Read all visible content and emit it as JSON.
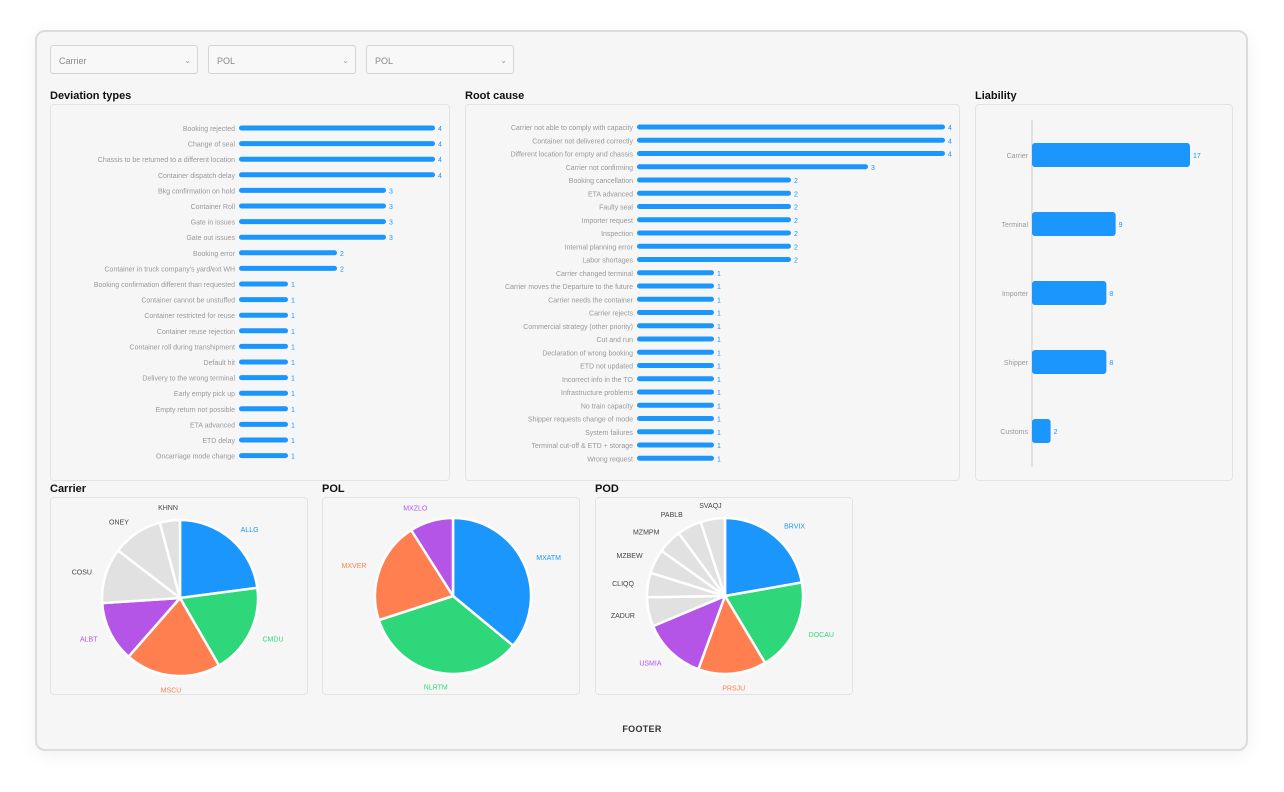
{
  "filters": [
    {
      "label": "Carrier"
    },
    {
      "label": "POL"
    },
    {
      "label": "POL"
    }
  ],
  "colors": {
    "bar": "#1a96fc",
    "label": "#999999",
    "value": "#1a96fc"
  },
  "deviation": {
    "title": "Deviation types",
    "chart": {
      "type": "bar",
      "orientation": "horizontal",
      "categories": [
        "Booking rejected",
        "Change of seal",
        "Chassis to be returned to a different location",
        "Container dispatch delay",
        "Bkg confirmation on hold",
        "Container Roll",
        "Gate in issues",
        "Gate out issues",
        "Booking error",
        "Container in truck company's yard/ext WH",
        "Booking confirmation different than requested",
        "Container cannot be unstuffed",
        "Container restricted for reuse",
        "Container reuse rejection",
        "Container roll during transhipment",
        "Default hit",
        "Delivery to the wrong terminal",
        "Early empty pick up",
        "Empty return not possible",
        "ETA advanced",
        "ETD delay",
        "Oncarriage mode change"
      ],
      "values": [
        4,
        4,
        4,
        4,
        3,
        3,
        3,
        3,
        2,
        2,
        1,
        1,
        1,
        1,
        1,
        1,
        1,
        1,
        1,
        1,
        1,
        1
      ],
      "xlim": [
        0,
        4
      ]
    }
  },
  "rootcause": {
    "title": "Root cause",
    "chart": {
      "type": "bar",
      "orientation": "horizontal",
      "categories": [
        "Carrier not able to comply with capacity",
        "Container not delivered correctly",
        "Different location for empty and chassis",
        "Carrier not confirming",
        "Booking cancellation",
        "ETA advanced",
        "Faulty seal",
        "Importer request",
        "Inspection",
        "Internal planning error",
        "Labor shortages",
        "Carrier changed terminal",
        "Carrier moves the Departure to the future",
        "Carrier needs the container",
        "Carrier rejects",
        "Commercial strategy (other priority)",
        "Cut and run",
        "Declaration of wrong booking",
        "ETD not updated",
        "Incorrect info in the TO",
        "Infrastructure problems",
        "No train capacity",
        "Shipper requests change of mode",
        "System failures",
        "Terminal cut-off & ETD + storage",
        "Wrong request"
      ],
      "values": [
        4,
        4,
        4,
        3,
        2,
        2,
        2,
        2,
        2,
        2,
        2,
        1,
        1,
        1,
        1,
        1,
        1,
        1,
        1,
        1,
        1,
        1,
        1,
        1,
        1,
        1
      ],
      "xlim": [
        0,
        4
      ]
    }
  },
  "liability": {
    "title": "Liability",
    "chart": {
      "type": "bar",
      "orientation": "horizontal",
      "categories": [
        "Carrier",
        "Terminal",
        "Importer",
        "Shipper",
        "Customs"
      ],
      "values": [
        17,
        9,
        8,
        8,
        2
      ],
      "xlim": [
        0,
        17
      ]
    }
  },
  "pies": [
    {
      "title": "Carrier",
      "chart": {
        "type": "pie",
        "labels": [
          "ALLG",
          "CMDU",
          "MSCU",
          "ALBT",
          "COSU",
          "ONEY",
          "KHNN"
        ],
        "values": [
          22,
          18,
          19,
          12,
          11,
          10,
          4
        ],
        "colors": [
          "#1a96fc",
          "#2ed87a",
          "#ff7f50",
          "#b455e8",
          "#e1e1e1",
          "#e1e1e1",
          "#e1e1e1"
        ],
        "label_colors": [
          "#1a96fc",
          "#2ed87a",
          "#ff7f50",
          "#b455e8",
          "#444444",
          "#444444",
          "#444444"
        ]
      }
    },
    {
      "title": "POL",
      "chart": {
        "type": "pie",
        "labels": [
          "MXATM",
          "NLRTM",
          "MXVER",
          "MXZLO"
        ],
        "values": [
          36,
          34,
          21,
          9
        ],
        "colors": [
          "#1a96fc",
          "#2ed87a",
          "#ff7f50",
          "#b455e8"
        ],
        "label_colors": [
          "#1a96fc",
          "#2ed87a",
          "#ff7f50",
          "#b455e8"
        ]
      }
    },
    {
      "title": "POD",
      "chart": {
        "type": "pie",
        "labels": [
          "BRVIX",
          "DOCAU",
          "PRSJU",
          "USMIA",
          "ZADUR",
          "CLIQQ",
          "MZBEW",
          "MZMPM",
          "PABLB",
          "SVAQJ"
        ],
        "values": [
          22,
          19,
          14,
          13,
          6,
          5,
          5,
          5,
          5,
          5
        ],
        "colors": [
          "#1a96fc",
          "#2ed87a",
          "#ff7f50",
          "#b455e8",
          "#e1e1e1",
          "#e1e1e1",
          "#e1e1e1",
          "#e1e1e1",
          "#e1e1e1",
          "#e1e1e1"
        ],
        "label_colors": [
          "#1a96fc",
          "#2ed87a",
          "#ff7f50",
          "#b455e8",
          "#444444",
          "#444444",
          "#444444",
          "#444444",
          "#444444",
          "#444444"
        ]
      }
    }
  ],
  "footer": "FOOTER"
}
